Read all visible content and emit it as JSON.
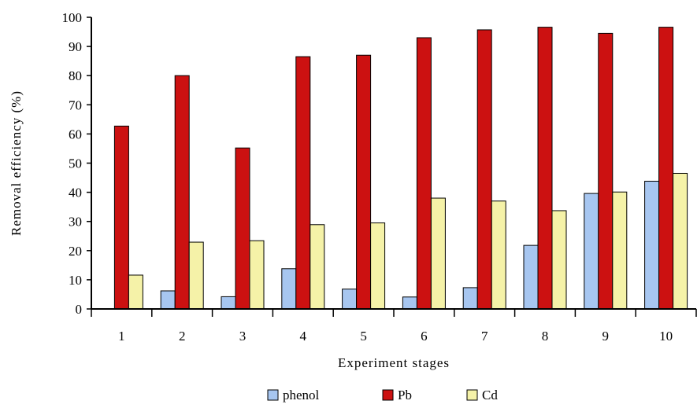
{
  "chart_data": {
    "type": "bar",
    "xlabel": "Experiment stages",
    "ylabel": "Removal efficiency (%)",
    "ylim": [
      0,
      100
    ],
    "yticks": [
      "0",
      "10",
      "20",
      "30",
      "40",
      "50",
      "60",
      "70",
      "80",
      "90",
      "100"
    ],
    "categories": [
      "1",
      "2",
      "3",
      "4",
      "5",
      "6",
      "7",
      "8",
      "9",
      "10"
    ],
    "series": [
      {
        "name": "phenol",
        "color": "#a7c6f0",
        "values": [
          0,
          6.2,
          4.2,
          13.8,
          6.8,
          4.1,
          7.3,
          21.8,
          39.6,
          43.8
        ]
      },
      {
        "name": "Pb",
        "color": "#cc1111",
        "values": [
          62.7,
          80.0,
          55.2,
          86.5,
          87.0,
          93.0,
          95.7,
          96.6,
          94.5,
          96.6
        ]
      },
      {
        "name": "Cd",
        "color": "#f5f2a8",
        "values": [
          11.6,
          22.9,
          23.4,
          28.9,
          29.5,
          38.0,
          37.0,
          33.7,
          40.1,
          46.5
        ]
      }
    ],
    "legend_position": "bottom",
    "grid": false
  }
}
